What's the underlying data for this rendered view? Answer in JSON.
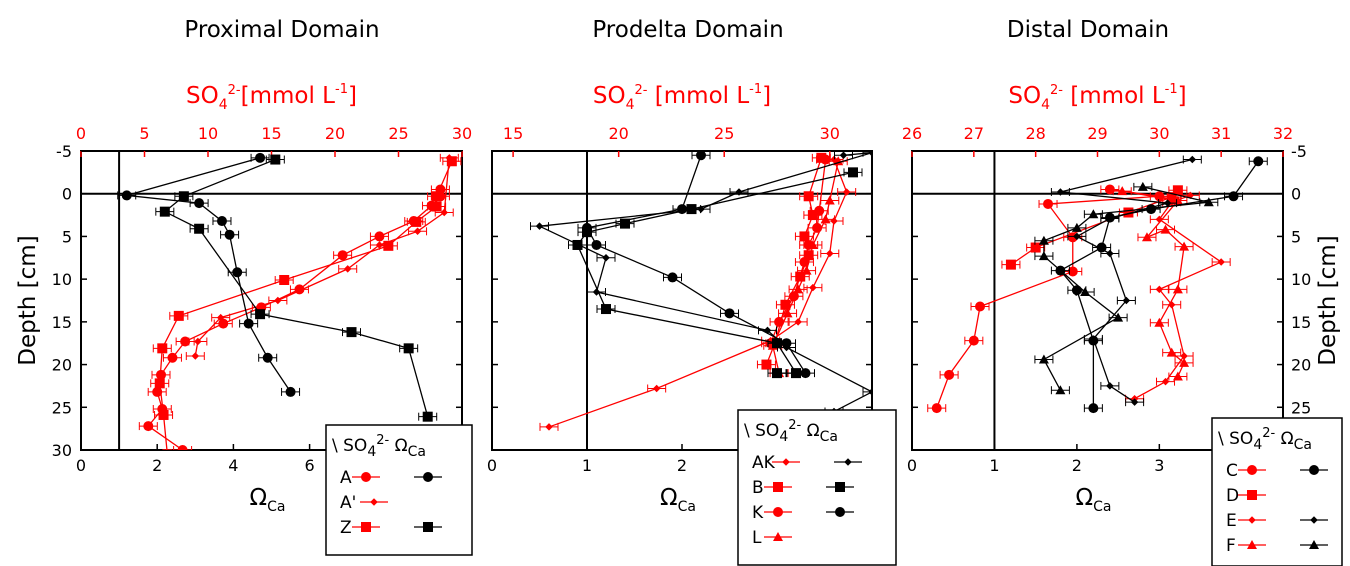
{
  "chart_data": [
    {
      "type": "scatter",
      "title": "Proximal Domain",
      "top_axis_label": "SO4 2- [mmol L-1]",
      "top_axis_parts": {
        "base": "SO",
        "sub": "4",
        "sup": "2-",
        "rest": "[mmol L",
        "unit_sup": "-1",
        "close": "]"
      },
      "bottom_axis_label": "Ω_Ca",
      "ylabel": "Depth [cm]",
      "xlim_omega": [
        0,
        10
      ],
      "xlim_so4": [
        0,
        30
      ],
      "ylim_depth": [
        -5,
        30
      ],
      "omega_ticks": [
        "0",
        "2",
        "4",
        "6"
      ],
      "so4_ticks": [
        "0",
        "5",
        "10",
        "15",
        "20",
        "25",
        "30"
      ],
      "depth_ticks": [
        "-5",
        "0",
        "5",
        "10",
        "15",
        "20",
        "25",
        "30"
      ],
      "legend": {
        "header": "\\ SO4 2- Ω_Ca",
        "header_parts": {
          "prefix": "\\ SO",
          "sub": "4",
          "sup": "2-",
          "omega": "Ω",
          "omega_sub": "Ca"
        },
        "entries": [
          {
            "label": "A",
            "so4_marker": "circle",
            "omega_marker": "circle"
          },
          {
            "label": "A'",
            "so4_marker": "diamond",
            "omega_marker": ""
          },
          {
            "label": "Z",
            "so4_marker": "square",
            "omega_marker": "square"
          }
        ]
      },
      "series": [
        {
          "name": "A",
          "variable": "SO4",
          "marker": "circle",
          "color": "#ff0000",
          "points": [
            [
              28.3,
              -0.5
            ],
            [
              28.3,
              0.3
            ],
            [
              27.6,
              1.4
            ],
            [
              26.2,
              3.2
            ],
            [
              23.5,
              5.0
            ],
            [
              20.6,
              7.2
            ],
            [
              17.2,
              11.2
            ],
            [
              14.2,
              13.3
            ],
            [
              11.2,
              15.2
            ],
            [
              8.2,
              17.3
            ],
            [
              7.2,
              19.2
            ],
            [
              6.3,
              21.2
            ],
            [
              6.0,
              23.2
            ],
            [
              6.4,
              25.2
            ],
            [
              5.3,
              27.2
            ],
            [
              8.0,
              30.0
            ]
          ]
        },
        {
          "name": "A'",
          "variable": "SO4",
          "marker": "diamond",
          "color": "#ff0000",
          "points": [
            [
              29.0,
              -4.2
            ],
            [
              28.6,
              2.2
            ],
            [
              26.5,
              4.4
            ],
            [
              23.5,
              6.0
            ],
            [
              21.0,
              8.8
            ],
            [
              15.5,
              12.5
            ],
            [
              11.0,
              14.5
            ],
            [
              9.2,
              17.3
            ],
            [
              9.0,
              19.0
            ]
          ]
        },
        {
          "name": "Z",
          "variable": "SO4",
          "marker": "square",
          "color": "#ff0000",
          "points": [
            [
              29.2,
              -3.8
            ],
            [
              28.0,
              0.3
            ],
            [
              28.0,
              1.5
            ],
            [
              26.4,
              3.3
            ],
            [
              24.2,
              6.1
            ],
            [
              16.0,
              10.1
            ],
            [
              7.7,
              14.3
            ],
            [
              6.4,
              18.1
            ],
            [
              6.2,
              22.2
            ],
            [
              6.5,
              25.9
            ],
            [
              6.8,
              30.5
            ]
          ]
        },
        {
          "name": "A",
          "variable": "Omega",
          "marker": "circle",
          "color": "#000000",
          "points": [
            [
              4.7,
              -4.2
            ],
            [
              1.2,
              0.2
            ],
            [
              3.1,
              1.1
            ],
            [
              3.7,
              3.2
            ],
            [
              3.9,
              4.8
            ],
            [
              4.1,
              9.2
            ],
            [
              4.4,
              15.2
            ],
            [
              4.9,
              19.2
            ],
            [
              5.5,
              23.2
            ]
          ]
        },
        {
          "name": "Z",
          "variable": "Omega",
          "marker": "square",
          "color": "#000000",
          "points": [
            [
              5.1,
              -4.0
            ],
            [
              2.7,
              0.3
            ],
            [
              2.2,
              2.1
            ],
            [
              3.1,
              4.1
            ],
            [
              4.7,
              14.1
            ],
            [
              7.1,
              16.2
            ],
            [
              8.6,
              18.1
            ],
            [
              9.1,
              26.1
            ]
          ]
        }
      ]
    },
    {
      "type": "scatter",
      "title": "Prodelta Domain",
      "top_axis_label": "SO4 2- [mmol L-1]",
      "top_axis_parts": {
        "base": "SO",
        "sub": "4",
        "sup": "2-",
        "rest": " [mmol L",
        "unit_sup": "-1",
        "close": "]"
      },
      "bottom_axis_label": "Ω_Ca",
      "xlim_omega": [
        0,
        4
      ],
      "xlim_so4": [
        14,
        32
      ],
      "ylim_depth": [
        -5,
        30
      ],
      "omega_ticks": [
        "0",
        "1",
        "2",
        "3"
      ],
      "so4_ticks": [
        "15",
        "20",
        "25",
        "30"
      ],
      "legend": {
        "header": "\\ SO4 2- Ω_Ca",
        "header_parts": {
          "prefix": "\\ SO",
          "sub": "4",
          "sup": "2-",
          "omega": "Ω",
          "omega_sub": "Ca"
        },
        "entries": [
          {
            "label": "AK",
            "so4_marker": "diamond",
            "omega_marker": "diamond"
          },
          {
            "label": "B",
            "so4_marker": "square",
            "omega_marker": "square"
          },
          {
            "label": "K",
            "so4_marker": "circle",
            "omega_marker": "circle"
          },
          {
            "label": "L",
            "so4_marker": "triangle",
            "omega_marker": ""
          }
        ]
      },
      "series": [
        {
          "name": "AK",
          "variable": "SO4",
          "marker": "diamond",
          "color": "#ff0000",
          "points": [
            [
              30.2,
              -4.0
            ],
            [
              30.8,
              -0.2
            ],
            [
              30.2,
              3.2
            ],
            [
              30.0,
              7.0
            ],
            [
              29.2,
              11.0
            ],
            [
              28.5,
              15.0
            ],
            [
              27.2,
              17.2
            ],
            [
              21.8,
              22.8
            ],
            [
              16.7,
              27.3
            ]
          ]
        },
        {
          "name": "B",
          "variable": "SO4",
          "marker": "square",
          "color": "#ff0000",
          "points": [
            [
              29.6,
              -4.2
            ],
            [
              29.0,
              0.3
            ],
            [
              29.2,
              2.5
            ],
            [
              28.8,
              5.0
            ],
            [
              29.0,
              7.2
            ],
            [
              28.6,
              9.7
            ],
            [
              27.9,
              13.0
            ],
            [
              27.4,
              17.5
            ],
            [
              27.0,
              20.0
            ]
          ]
        },
        {
          "name": "K",
          "variable": "SO4",
          "marker": "circle",
          "color": "#ff0000",
          "points": [
            [
              29.8,
              -4.0
            ],
            [
              29.5,
              2.0
            ],
            [
              29.4,
              4.0
            ],
            [
              29.0,
              6.0
            ],
            [
              28.8,
              8.0
            ],
            [
              28.3,
              12.0
            ],
            [
              27.6,
              15.0
            ],
            [
              27.2,
              17.5
            ]
          ]
        },
        {
          "name": "L",
          "variable": "SO4",
          "marker": "triangle",
          "color": "#ff0000",
          "points": [
            [
              30.4,
              -3.8
            ],
            [
              30.0,
              0.8
            ],
            [
              29.8,
              3.0
            ],
            [
              29.2,
              6.0
            ],
            [
              28.9,
              9.0
            ],
            [
              28.5,
              11.2
            ],
            [
              28.0,
              14.0
            ],
            [
              27.3,
              17.8
            ],
            [
              27.6,
              21.0
            ]
          ]
        },
        {
          "name": "AK",
          "variable": "Omega",
          "marker": "diamond",
          "color": "#000000",
          "points": [
            [
              3.7,
              -4.5
            ],
            [
              4.0,
              -4.8
            ],
            [
              2.6,
              -0.2
            ],
            [
              2.2,
              1.8
            ],
            [
              0.5,
              3.8
            ],
            [
              1.2,
              7.5
            ],
            [
              1.1,
              11.5
            ],
            [
              2.9,
              16.0
            ],
            [
              3.1,
              18.0
            ],
            [
              4.0,
              23.2
            ],
            [
              3.6,
              25.5
            ]
          ]
        },
        {
          "name": "B",
          "variable": "Omega",
          "marker": "square",
          "color": "#000000",
          "points": [
            [
              3.8,
              -2.5
            ],
            [
              2.1,
              1.8
            ],
            [
              1.4,
              3.5
            ],
            [
              1.0,
              4.5
            ],
            [
              0.9,
              6.0
            ],
            [
              1.2,
              13.5
            ],
            [
              3.0,
              17.5
            ],
            [
              3.2,
              21.0
            ],
            [
              3.0,
              21.0
            ]
          ]
        },
        {
          "name": "K",
          "variable": "Omega",
          "marker": "circle",
          "color": "#000000",
          "points": [
            [
              2.2,
              -4.5
            ],
            [
              2.0,
              1.8
            ],
            [
              1.0,
              4.0
            ],
            [
              1.1,
              6.0
            ],
            [
              1.9,
              9.8
            ],
            [
              2.5,
              14.0
            ],
            [
              3.1,
              17.5
            ],
            [
              3.3,
              21.0
            ]
          ]
        }
      ]
    },
    {
      "type": "scatter",
      "title": "Distal Domain",
      "top_axis_label": "SO4 2- [mmol L-1]",
      "top_axis_parts": {
        "base": "SO",
        "sub": "4",
        "sup": "2-",
        "rest": " [mmol L",
        "unit_sup": "-1",
        "close": "]"
      },
      "bottom_axis_label": "Ω_Ca",
      "ylabel": "Depth [cm]",
      "xlim_omega": [
        0,
        4.5
      ],
      "xlim_so4": [
        26,
        32
      ],
      "ylim_depth": [
        -5,
        30
      ],
      "omega_ticks": [
        "0",
        "1",
        "2",
        "3",
        "4"
      ],
      "so4_ticks": [
        "26",
        "27",
        "28",
        "29",
        "30",
        "31",
        "32"
      ],
      "depth_ticks": [
        "-5",
        "0",
        "5",
        "10",
        "15",
        "20",
        "25"
      ],
      "legend": {
        "header": "\\ SO4 2- Ω_Ca",
        "header_parts": {
          "prefix": "\\ SO",
          "sub": "4",
          "sup": "2-",
          "omega": "Ω",
          "omega_sub": "Ca"
        },
        "entries": [
          {
            "label": "C",
            "so4_marker": "circle",
            "omega_marker": "circle"
          },
          {
            "label": "D",
            "so4_marker": "square",
            "omega_marker": ""
          },
          {
            "label": "E",
            "so4_marker": "diamond",
            "omega_marker": "diamond"
          },
          {
            "label": "F",
            "so4_marker": "triangle",
            "omega_marker": "triangle"
          }
        ]
      },
      "series": [
        {
          "name": "C",
          "variable": "SO4",
          "marker": "circle",
          "color": "#ff0000",
          "points": [
            [
              29.2,
              -0.5
            ],
            [
              30.0,
              0.3
            ],
            [
              28.2,
              1.2
            ],
            [
              28.6,
              5.1
            ],
            [
              28.6,
              9.1
            ],
            [
              27.1,
              13.2
            ],
            [
              27.0,
              17.2
            ],
            [
              26.6,
              21.2
            ],
            [
              26.4,
              25.1
            ]
          ]
        },
        {
          "name": "D",
          "variable": "SO4",
          "marker": "square",
          "color": "#ff0000",
          "points": [
            [
              30.3,
              -0.4
            ],
            [
              30.2,
              0.4
            ],
            [
              29.5,
              2.2
            ],
            [
              28.0,
              6.3
            ],
            [
              27.6,
              8.3
            ]
          ]
        },
        {
          "name": "E",
          "variable": "SO4",
          "marker": "diamond",
          "color": "#ff0000",
          "points": [
            [
              30.5,
              0.2
            ],
            [
              30.2,
              1.0
            ],
            [
              30.0,
              3.0
            ],
            [
              31.0,
              8.0
            ],
            [
              30.0,
              11.2
            ],
            [
              30.2,
              13.0
            ],
            [
              30.4,
              19.0
            ],
            [
              30.1,
              22.0
            ],
            [
              29.6,
              24.0
            ]
          ]
        },
        {
          "name": "F",
          "variable": "SO4",
          "marker": "triangle",
          "color": "#ff0000",
          "points": [
            [
              29.4,
              -0.3
            ],
            [
              30.3,
              0.8
            ],
            [
              29.8,
              5.1
            ],
            [
              30.1,
              4.2
            ],
            [
              30.4,
              6.2
            ],
            [
              30.3,
              11.2
            ],
            [
              30.0,
              15.1
            ],
            [
              30.2,
              18.6
            ],
            [
              30.4,
              19.8
            ],
            [
              30.3,
              21.4
            ]
          ]
        },
        {
          "name": "C",
          "variable": "Omega",
          "marker": "circle",
          "color": "#000000",
          "points": [
            [
              4.2,
              -3.8
            ],
            [
              3.9,
              0.3
            ],
            [
              2.9,
              1.8
            ],
            [
              2.4,
              2.8
            ],
            [
              2.3,
              6.3
            ],
            [
              1.8,
              9.0
            ],
            [
              2.0,
              11.3
            ],
            [
              2.2,
              17.2
            ],
            [
              2.2,
              25.1
            ]
          ]
        },
        {
          "name": "E",
          "variable": "Omega",
          "marker": "diamond",
          "color": "#000000",
          "points": [
            [
              3.4,
              -4.0
            ],
            [
              1.8,
              -0.2
            ],
            [
              3.1,
              1.1
            ],
            [
              2.4,
              2.9
            ],
            [
              2.0,
              5.0
            ],
            [
              2.4,
              7.0
            ],
            [
              2.6,
              12.5
            ],
            [
              2.2,
              17.0
            ],
            [
              2.4,
              22.5
            ],
            [
              2.7,
              24.4
            ]
          ]
        },
        {
          "name": "F",
          "variable": "Omega",
          "marker": "triangle",
          "color": "#000000",
          "points": [
            [
              2.8,
              -0.8
            ],
            [
              3.6,
              1.0
            ],
            [
              2.2,
              2.4
            ],
            [
              2.0,
              4.0
            ],
            [
              1.6,
              5.5
            ],
            [
              1.6,
              7.3
            ],
            [
              2.1,
              11.5
            ],
            [
              2.5,
              14.5
            ],
            [
              1.6,
              19.4
            ],
            [
              1.8,
              23.0
            ]
          ]
        }
      ]
    }
  ]
}
